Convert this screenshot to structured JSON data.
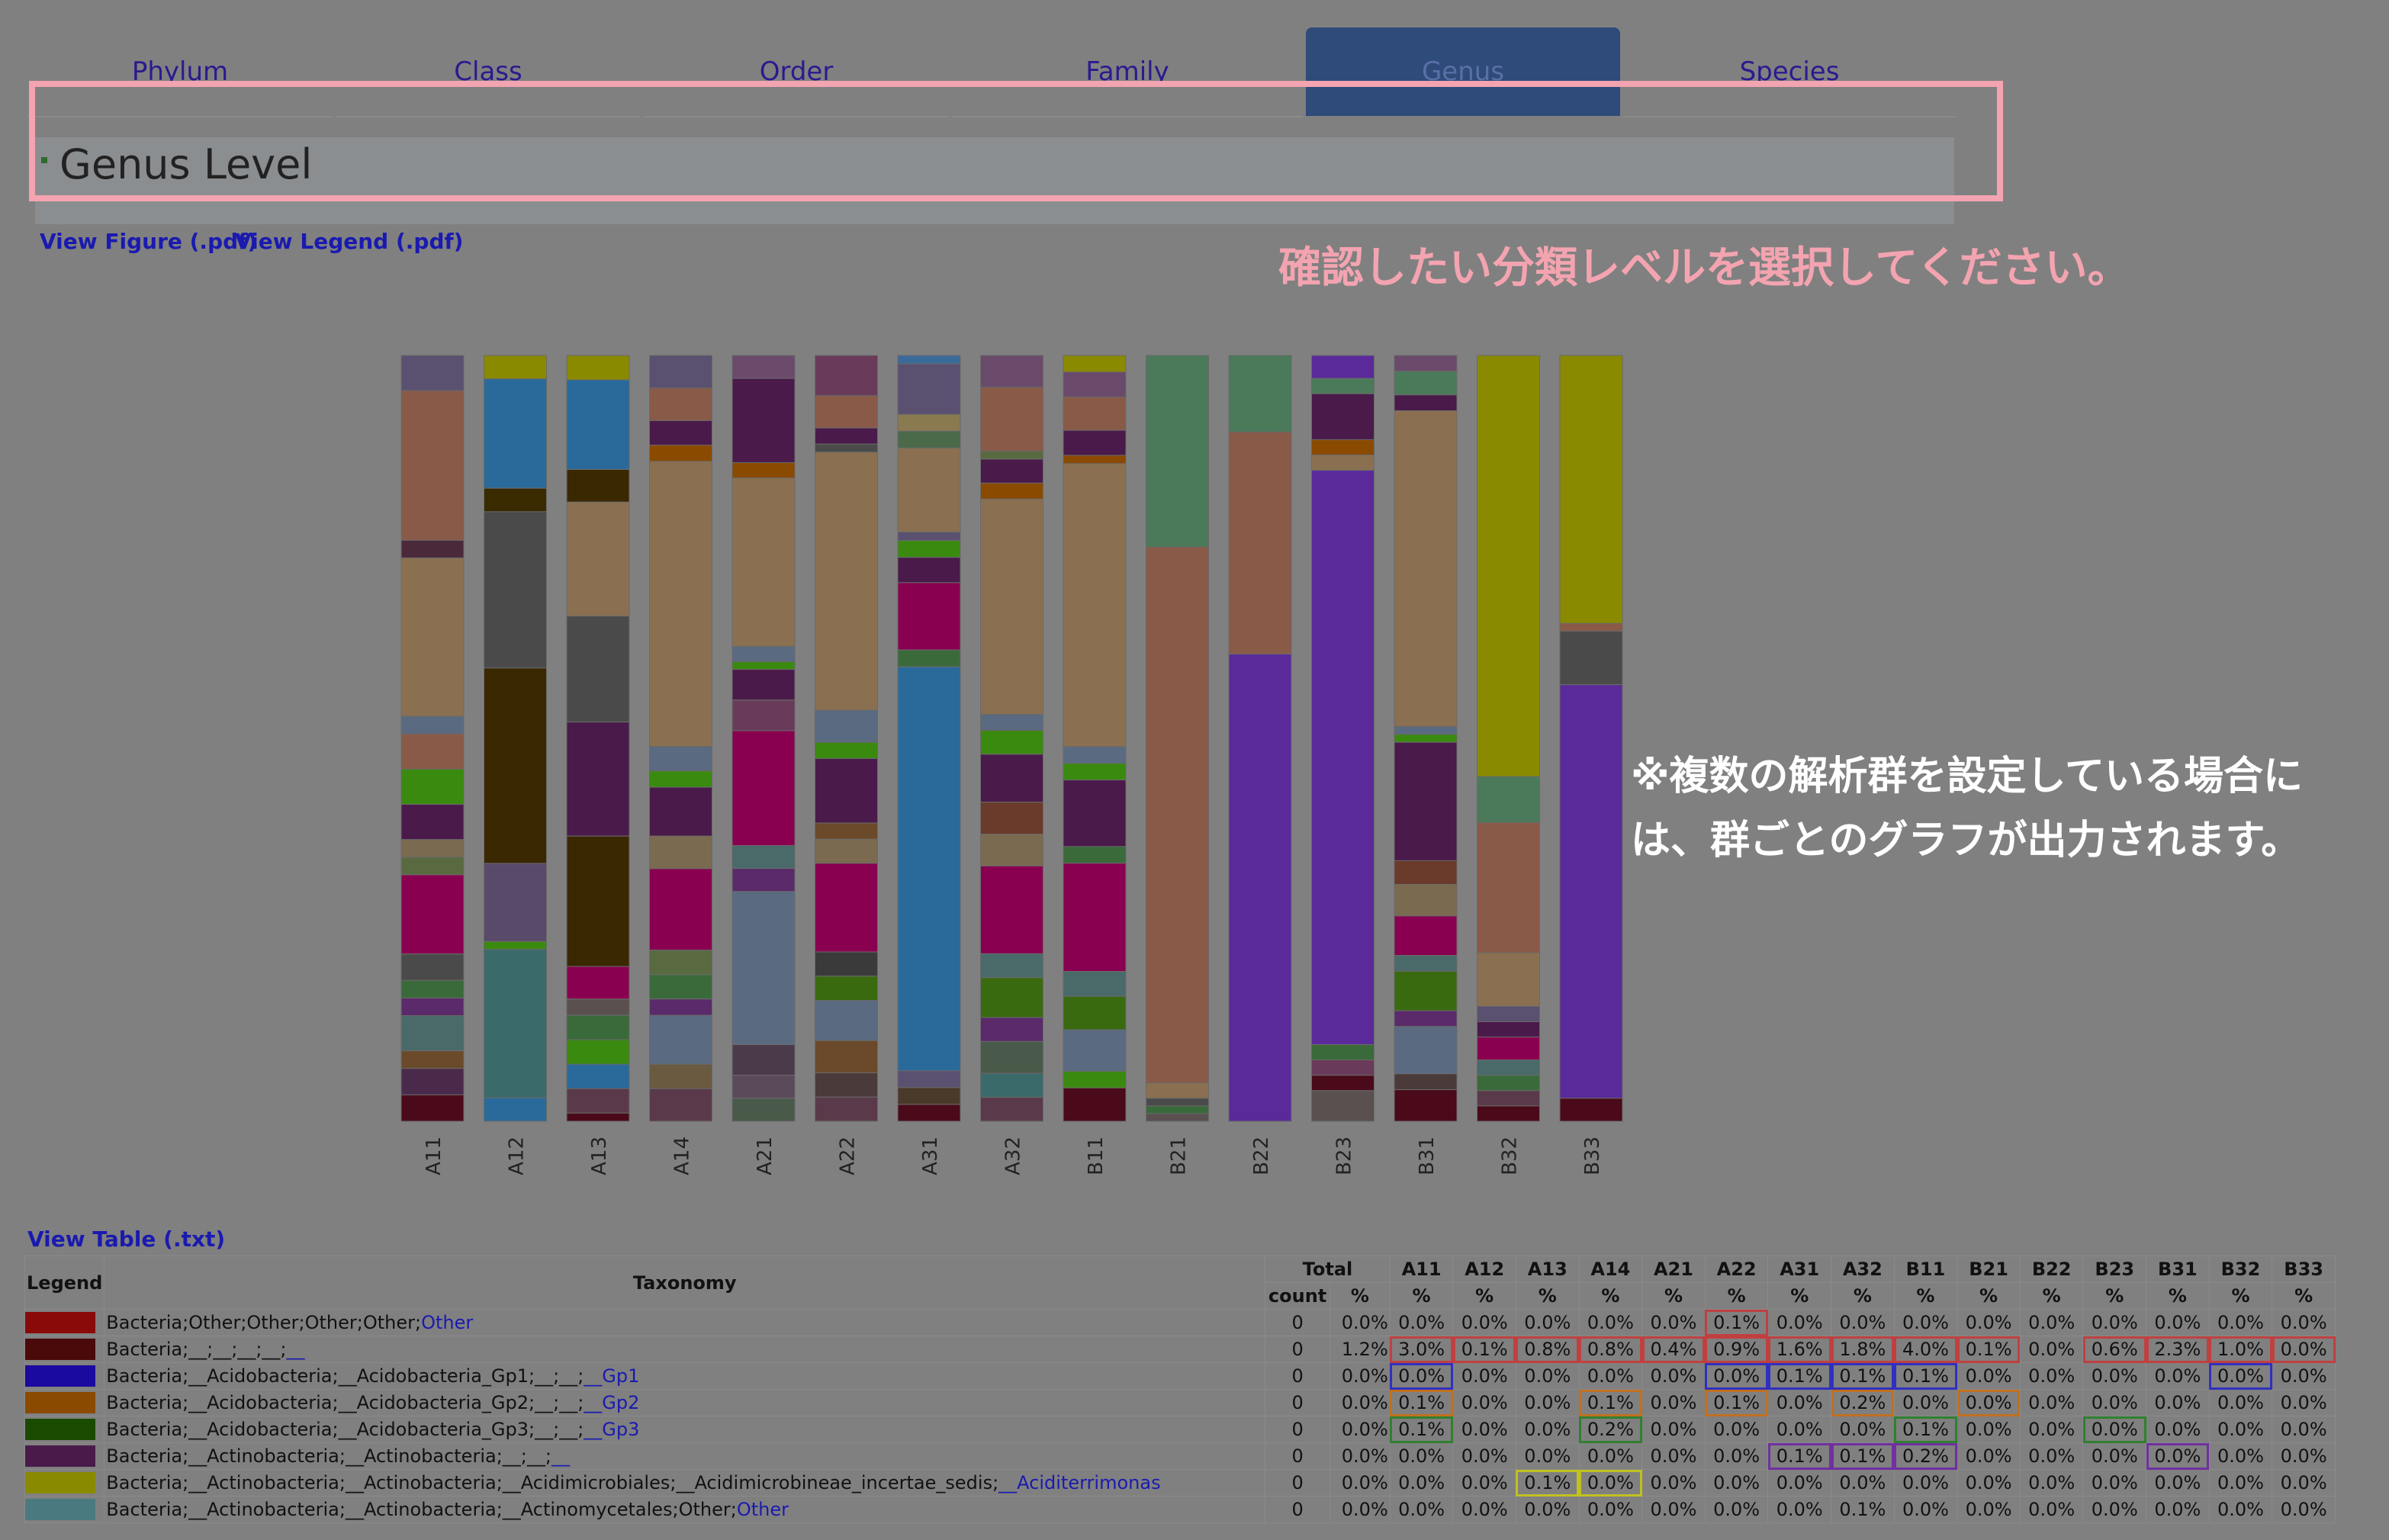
{
  "tabs": [
    {
      "label": "Phylum",
      "active": false
    },
    {
      "label": "Class",
      "active": false
    },
    {
      "label": "Order",
      "active": false
    },
    {
      "label": "Family",
      "active": false
    },
    {
      "label": "Genus",
      "active": true
    },
    {
      "label": "Species",
      "active": false
    }
  ],
  "page_title": "Genus Level",
  "links": {
    "view_figure": "View Figure (.pdf)",
    "view_legend": "View Legend (.pdf)",
    "view_table": "View Table (.txt)"
  },
  "annotations": {
    "select_level": "確認したい分類レベルを選択してください。",
    "multi_group_line1": "※複数の解析群を設定している場合に",
    "multi_group_line2": "は、群ごとのグラフが出力されます。"
  },
  "colors": {
    "callout": "#f3a4b0",
    "active_tab": "#2e4b7a",
    "link": "#1a1ab0"
  },
  "chart_data": {
    "type": "bar",
    "stacked": true,
    "normalized": true,
    "categories": [
      "A11",
      "A12",
      "A13",
      "A14",
      "A21",
      "A22",
      "A31",
      "A32",
      "B11",
      "B21",
      "B22",
      "B23",
      "B31",
      "B32",
      "B33"
    ],
    "samples": [
      {
        "name": "A11",
        "segments": [
          [
            "#5a5070",
            4
          ],
          [
            "#8a5a48",
            17
          ],
          [
            "#4a2a3a",
            2
          ],
          [
            "#8a7050",
            18
          ],
          [
            "#5a6a80",
            2
          ],
          [
            "#8a5a48",
            4
          ],
          [
            "#3a8a10",
            4
          ],
          [
            "#4a1a4a",
            4
          ],
          [
            "#7a6a50",
            2
          ],
          [
            "#5a6a40",
            2
          ],
          [
            "#8a0050",
            9
          ],
          [
            "#4a4a4a",
            3
          ],
          [
            "#3a6a3a",
            2
          ],
          [
            "#5a2a6a",
            2
          ],
          [
            "#4a6a6a",
            4
          ],
          [
            "#6a4a2a",
            2
          ],
          [
            "#4a2a4a",
            3
          ],
          [
            "#4a0a1a",
            3
          ]
        ]
      },
      {
        "name": "A12",
        "segments": [
          [
            "#8a8a00",
            3
          ],
          [
            "#2a6a9a",
            14
          ],
          [
            "#3a2a00",
            3
          ],
          [
            "#4a4a4a",
            20
          ],
          [
            "#3a2800",
            25
          ],
          [
            "#5a4a6a",
            10
          ],
          [
            "#3a8a10",
            1
          ],
          [
            "#3a6a6a",
            19
          ],
          [
            "#2a6a9a",
            3
          ]
        ]
      },
      {
        "name": "A13",
        "segments": [
          [
            "#8a8a00",
            3
          ],
          [
            "#2a6a9a",
            11
          ],
          [
            "#3a2800",
            4
          ],
          [
            "#8a7050",
            14
          ],
          [
            "#4a4a4a",
            13
          ],
          [
            "#4a1a4a",
            14
          ],
          [
            "#3a2800",
            16
          ],
          [
            "#8a0050",
            4
          ],
          [
            "#5a5050",
            2
          ],
          [
            "#3a6a3a",
            3
          ],
          [
            "#3a8a10",
            3
          ],
          [
            "#2a6a9a",
            3
          ],
          [
            "#5a3a4a",
            3
          ],
          [
            "#4a0a1a",
            1
          ]
        ]
      },
      {
        "name": "A14",
        "segments": [
          [
            "#5a5070",
            4
          ],
          [
            "#8a5a48",
            4
          ],
          [
            "#4a1a4a",
            3
          ],
          [
            "#8a4a00",
            2
          ],
          [
            "#8a7050",
            35
          ],
          [
            "#5a6a80",
            3
          ],
          [
            "#3a8a10",
            2
          ],
          [
            "#4a1a4a",
            6
          ],
          [
            "#7a6a50",
            4
          ],
          [
            "#8a0050",
            10
          ],
          [
            "#5a6a40",
            3
          ],
          [
            "#3a6a3a",
            3
          ],
          [
            "#5a2a6a",
            2
          ],
          [
            "#5a6a80",
            6
          ],
          [
            "#6a5a40",
            3
          ],
          [
            "#5a3a4a",
            4
          ]
        ]
      },
      {
        "name": "A21",
        "segments": [
          [
            "#6a4a6a",
            3
          ],
          [
            "#4a1a4a",
            11
          ],
          [
            "#8a4a00",
            2
          ],
          [
            "#8a7050",
            22
          ],
          [
            "#5a6a80",
            2
          ],
          [
            "#3a8a10",
            1
          ],
          [
            "#4a1a4a",
            4
          ],
          [
            "#6a3a5a",
            4
          ],
          [
            "#8a0050",
            15
          ],
          [
            "#4a6a6a",
            3
          ],
          [
            "#5a2a6a",
            3
          ],
          [
            "#5a6a80",
            20
          ],
          [
            "#4a3a4a",
            4
          ],
          [
            "#5a4a5a",
            3
          ],
          [
            "#4a5a4a",
            3
          ]
        ]
      },
      {
        "name": "A22",
        "segments": [
          [
            "#6a3a5a",
            5
          ],
          [
            "#8a5a48",
            4
          ],
          [
            "#4a1a4a",
            2
          ],
          [
            "#4a4a4a",
            1
          ],
          [
            "#8a7050",
            32
          ],
          [
            "#5a6a80",
            4
          ],
          [
            "#3a8a10",
            2
          ],
          [
            "#4a1a4a",
            8
          ],
          [
            "#6a4a2a",
            2
          ],
          [
            "#7a6a50",
            3
          ],
          [
            "#8a0050",
            11
          ],
          [
            "#3a3a3a",
            3
          ],
          [
            "#3a6a10",
            3
          ],
          [
            "#5a6a80",
            5
          ],
          [
            "#6a4a2a",
            4
          ],
          [
            "#4a3a3a",
            3
          ],
          [
            "#5a3a4a",
            3
          ]
        ]
      },
      {
        "name": "A31",
        "segments": [
          [
            "#3a6a9a",
            1
          ],
          [
            "#5a5070",
            6
          ],
          [
            "#8a7a50",
            2
          ],
          [
            "#4a6a4a",
            2
          ],
          [
            "#8a7050",
            10
          ],
          [
            "#5a5070",
            1
          ],
          [
            "#3a8a10",
            2
          ],
          [
            "#4a1a4a",
            3
          ],
          [
            "#8a0050",
            8
          ],
          [
            "#3a6a3a",
            2
          ],
          [
            "#2a6a9a",
            48
          ],
          [
            "#5a5070",
            2
          ],
          [
            "#4a3a2a",
            2
          ],
          [
            "#4a0a1a",
            2
          ]
        ]
      },
      {
        "name": "A32",
        "segments": [
          [
            "#6a4a6a",
            4
          ],
          [
            "#8a5a48",
            8
          ],
          [
            "#5a6a40",
            1
          ],
          [
            "#4a1a4a",
            3
          ],
          [
            "#8a4a00",
            2
          ],
          [
            "#8a7050",
            27
          ],
          [
            "#5a6a80",
            2
          ],
          [
            "#3a8a10",
            3
          ],
          [
            "#4a1a4a",
            6
          ],
          [
            "#6a3a2a",
            4
          ],
          [
            "#7a6a50",
            4
          ],
          [
            "#8a0050",
            11
          ],
          [
            "#4a6a6a",
            3
          ],
          [
            "#3a6a10",
            5
          ],
          [
            "#5a2a6a",
            3
          ],
          [
            "#4a5a4a",
            4
          ],
          [
            "#3a6a6a",
            3
          ],
          [
            "#5a3a4a",
            3
          ]
        ]
      },
      {
        "name": "B11",
        "segments": [
          [
            "#8a8a00",
            2
          ],
          [
            "#6a4a6a",
            3
          ],
          [
            "#8a5a48",
            4
          ],
          [
            "#4a1a4a",
            3
          ],
          [
            "#8a4a00",
            1
          ],
          [
            "#8a7050",
            34
          ],
          [
            "#5a6a80",
            2
          ],
          [
            "#3a8a10",
            2
          ],
          [
            "#4a1a4a",
            8
          ],
          [
            "#3a6a3a",
            2
          ],
          [
            "#8a0050",
            13
          ],
          [
            "#4a6a6a",
            3
          ],
          [
            "#3a6a10",
            4
          ],
          [
            "#5a6a80",
            5
          ],
          [
            "#3a8a10",
            2
          ],
          [
            "#4a0a1a",
            4
          ]
        ]
      },
      {
        "name": "B21",
        "segments": [
          [
            "#4a7a5a",
            25
          ],
          [
            "#8a5a48",
            70
          ],
          [
            "#8a7050",
            2
          ],
          [
            "#4a4a4a",
            1
          ],
          [
            "#3a6a3a",
            1
          ],
          [
            "#5a5050",
            1
          ]
        ]
      },
      {
        "name": "B22",
        "segments": [
          [
            "#4a7a5a",
            10
          ],
          [
            "#8a5a48",
            29
          ],
          [
            "#5a2a9a",
            61
          ]
        ]
      },
      {
        "name": "B23",
        "segments": [
          [
            "#5a2a9a",
            3
          ],
          [
            "#4a7a5a",
            2
          ],
          [
            "#4a1a4a",
            6
          ],
          [
            "#8a4a00",
            2
          ],
          [
            "#8a7050",
            2
          ],
          [
            "#5a2a9a",
            75
          ],
          [
            "#3a6a3a",
            2
          ],
          [
            "#6a3a5a",
            2
          ],
          [
            "#4a0a1a",
            2
          ],
          [
            "#5a5050",
            4
          ]
        ]
      },
      {
        "name": "B31",
        "segments": [
          [
            "#6a4a6a",
            2
          ],
          [
            "#4a7a5a",
            3
          ],
          [
            "#4a1a4a",
            2
          ],
          [
            "#8a7050",
            40
          ],
          [
            "#5a6a80",
            1
          ],
          [
            "#3a8a10",
            1
          ],
          [
            "#4a1a4a",
            15
          ],
          [
            "#6a3a2a",
            3
          ],
          [
            "#7a6a50",
            4
          ],
          [
            "#8a0050",
            5
          ],
          [
            "#4a6a6a",
            2
          ],
          [
            "#3a6a10",
            5
          ],
          [
            "#5a2a6a",
            2
          ],
          [
            "#5a6a80",
            6
          ],
          [
            "#4a3a3a",
            2
          ],
          [
            "#4a0a1a",
            4
          ]
        ]
      },
      {
        "name": "B32",
        "segments": [
          [
            "#8a8a00",
            55
          ],
          [
            "#4a7a5a",
            6
          ],
          [
            "#8a5a48",
            17
          ],
          [
            "#8a7050",
            7
          ],
          [
            "#5a5070",
            2
          ],
          [
            "#4a1a4a",
            2
          ],
          [
            "#8a0050",
            3
          ],
          [
            "#4a6a6a",
            2
          ],
          [
            "#3a6a3a",
            2
          ],
          [
            "#5a3a4a",
            2
          ],
          [
            "#4a0a1a",
            2
          ]
        ]
      },
      {
        "name": "B33",
        "segments": [
          [
            "#8a8a00",
            35
          ],
          [
            "#8a5a48",
            1
          ],
          [
            "#4a4a4a",
            7
          ],
          [
            "#5a2a9a",
            54
          ],
          [
            "#4a0a1a",
            3
          ]
        ]
      }
    ]
  },
  "table": {
    "group_header_total": "Total",
    "header_legend": "Legend",
    "header_taxonomy": "Taxonomy",
    "header_count": "count",
    "header_pct": "%",
    "samples": [
      "A11",
      "A12",
      "A13",
      "A14",
      "A21",
      "A22",
      "A31",
      "A32",
      "B11",
      "B21",
      "B22",
      "B23",
      "B31",
      "B32",
      "B33"
    ],
    "rows": [
      {
        "color": "#8a0a0a",
        "tax_prefix": "Bacteria;Other;Other;Other;Other;",
        "tax_link": "Other",
        "count": "0",
        "total": "0.0%",
        "values": [
          "0.0%",
          "0.0%",
          "0.0%",
          "0.0%",
          "0.0%",
          "0.1%",
          "0.0%",
          "0.0%",
          "0.0%",
          "0.0%",
          "0.0%",
          "0.0%",
          "0.0%",
          "0.0%",
          "0.0%"
        ],
        "hl": "r",
        "hlcols": [
          5
        ]
      },
      {
        "color": "#4a0a0a",
        "tax_prefix": "Bacteria;__;__;__;__;",
        "tax_link": "__",
        "count": "0",
        "total": "1.2%",
        "values": [
          "3.0%",
          "0.1%",
          "0.8%",
          "0.8%",
          "0.4%",
          "0.9%",
          "1.6%",
          "1.8%",
          "4.0%",
          "0.1%",
          "0.0%",
          "0.6%",
          "2.3%",
          "1.0%",
          "0.0%"
        ],
        "hl": "r",
        "hlcols": [
          0,
          1,
          2,
          3,
          4,
          5,
          6,
          7,
          8,
          9,
          11,
          12,
          13,
          14
        ]
      },
      {
        "color": "#1a0aa0",
        "tax_prefix": "Bacteria;__Acidobacteria;__Acidobacteria_Gp1;__;__;",
        "tax_link": "__Gp1",
        "count": "0",
        "total": "0.0%",
        "values": [
          "0.0%",
          "0.0%",
          "0.0%",
          "0.0%",
          "0.0%",
          "0.0%",
          "0.1%",
          "0.1%",
          "0.1%",
          "0.0%",
          "0.0%",
          "0.0%",
          "0.0%",
          "0.0%",
          "0.0%"
        ],
        "hl": "b",
        "hlcols": [
          0,
          5,
          6,
          7,
          8,
          13
        ]
      },
      {
        "color": "#8a4a00",
        "tax_prefix": "Bacteria;__Acidobacteria;__Acidobacteria_Gp2;__;__;",
        "tax_link": "__Gp2",
        "count": "0",
        "total": "0.0%",
        "values": [
          "0.1%",
          "0.0%",
          "0.0%",
          "0.1%",
          "0.0%",
          "0.1%",
          "0.0%",
          "0.2%",
          "0.0%",
          "0.0%",
          "0.0%",
          "0.0%",
          "0.0%",
          "0.0%",
          "0.0%"
        ],
        "hl": "o",
        "hlcols": [
          0,
          3,
          5,
          7,
          9
        ]
      },
      {
        "color": "#1a4a00",
        "tax_prefix": "Bacteria;__Acidobacteria;__Acidobacteria_Gp3;__;__;",
        "tax_link": "__Gp3",
        "count": "0",
        "total": "0.0%",
        "values": [
          "0.1%",
          "0.0%",
          "0.0%",
          "0.2%",
          "0.0%",
          "0.0%",
          "0.0%",
          "0.0%",
          "0.1%",
          "0.0%",
          "0.0%",
          "0.0%",
          "0.0%",
          "0.0%",
          "0.0%"
        ],
        "hl": "g",
        "hlcols": [
          0,
          3,
          8,
          11
        ]
      },
      {
        "color": "#4a1a4a",
        "tax_prefix": "Bacteria;__Actinobacteria;__Actinobacteria;__;__;",
        "tax_link": "__",
        "count": "0",
        "total": "0.0%",
        "values": [
          "0.0%",
          "0.0%",
          "0.0%",
          "0.0%",
          "0.0%",
          "0.0%",
          "0.1%",
          "0.1%",
          "0.2%",
          "0.0%",
          "0.0%",
          "0.0%",
          "0.0%",
          "0.0%",
          "0.0%"
        ],
        "hl": "p",
        "hlcols": [
          6,
          7,
          8,
          12
        ]
      },
      {
        "color": "#8a8a00",
        "tax_prefix": "Bacteria;__Actinobacteria;__Actinobacteria;__Acidimicrobiales;__Acidimicrobineae_incertae_sedis;",
        "tax_link": "__Aciditerrimonas",
        "count": "0",
        "total": "0.0%",
        "values": [
          "0.0%",
          "0.0%",
          "0.1%",
          "0.0%",
          "0.0%",
          "0.0%",
          "0.0%",
          "0.0%",
          "0.0%",
          "0.0%",
          "0.0%",
          "0.0%",
          "0.0%",
          "0.0%",
          "0.0%"
        ],
        "hl": "y",
        "hlcols": [
          2,
          3
        ]
      },
      {
        "color": "#4a7a80",
        "tax_prefix": "Bacteria;__Actinobacteria;__Actinobacteria;__Actinomycetales;Other;",
        "tax_link": "Other",
        "count": "0",
        "total": "0.0%",
        "values": [
          "0.0%",
          "0.0%",
          "0.0%",
          "0.0%",
          "0.0%",
          "0.0%",
          "0.0%",
          "0.1%",
          "0.0%",
          "0.0%",
          "0.0%",
          "0.0%",
          "0.0%",
          "0.0%",
          "0.0%"
        ],
        "hl": "",
        "hlcols": []
      }
    ]
  }
}
